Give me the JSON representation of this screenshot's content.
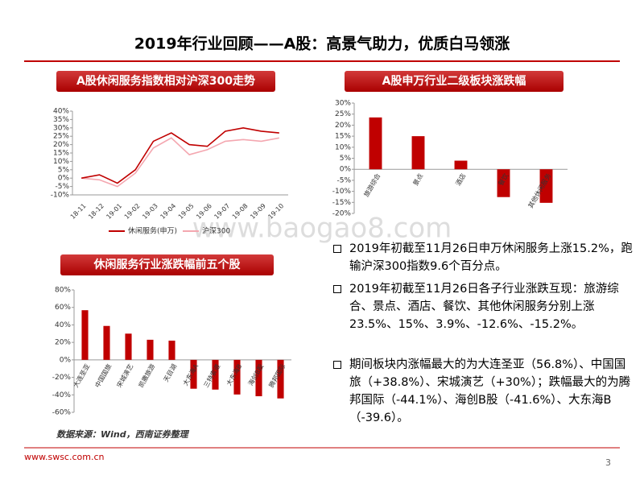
{
  "header": {
    "title": "2019年行业回顾——A股：高景气助力，优质白马领涨"
  },
  "chart_data": [
    {
      "type": "line",
      "title": "A股休闲服务指数相对沪深300走势",
      "categories": [
        "18-11",
        "18-12",
        "19-01",
        "19-02",
        "19-03",
        "19-04",
        "19-05",
        "19-06",
        "19-07",
        "19-08",
        "19-09",
        "19-10"
      ],
      "series": [
        {
          "name": "休闲服务(申万)",
          "color": "#c00000",
          "values": [
            0,
            2,
            -3,
            5,
            22,
            27,
            20,
            19,
            28,
            30,
            28,
            27
          ]
        },
        {
          "name": "沪深300",
          "color": "#f4a7b0",
          "values": [
            0,
            -1,
            -5,
            3,
            18,
            24,
            14,
            17,
            22,
            23,
            22,
            24
          ]
        }
      ],
      "ylim": [
        -10,
        40
      ],
      "yticks": [
        {
          "value": -10,
          "label": "-10%"
        },
        {
          "value": -5,
          "label": "-5%"
        },
        {
          "value": 0,
          "label": "0%"
        },
        {
          "value": 5,
          "label": "5%"
        },
        {
          "value": 10,
          "label": "10%"
        },
        {
          "value": 15,
          "label": "15%"
        },
        {
          "value": 20,
          "label": "20%"
        },
        {
          "value": 25,
          "label": "25%"
        },
        {
          "value": 30,
          "label": "30%"
        },
        {
          "value": 35,
          "label": "35%"
        },
        {
          "value": 40,
          "label": "40%"
        }
      ]
    },
    {
      "type": "bar",
      "title": "A股申万行业二级板块涨跌幅",
      "color": "#c00000",
      "categories": [
        "旅游综合",
        "景点",
        "酒店",
        "餐饮",
        "其他休闲服务"
      ],
      "values": [
        23.5,
        15,
        3.9,
        -12.6,
        -15.2
      ],
      "ylim": [
        -20,
        30
      ],
      "yticks": [
        {
          "value": -20,
          "label": "-20%"
        },
        {
          "value": -15,
          "label": "-15%"
        },
        {
          "value": -10,
          "label": "-10%"
        },
        {
          "value": -5,
          "label": "-5%"
        },
        {
          "value": 0,
          "label": "0%"
        },
        {
          "value": 5,
          "label": "5%"
        },
        {
          "value": 10,
          "label": "10%"
        },
        {
          "value": 15,
          "label": "15%"
        },
        {
          "value": 20,
          "label": "20%"
        },
        {
          "value": 25,
          "label": "25%"
        },
        {
          "value": 30,
          "label": "30%"
        }
      ]
    },
    {
      "type": "bar",
      "title": "休闲服务行业涨跌幅前五个股",
      "color": "#c00000",
      "categories": [
        "大连圣亚",
        "中国国旅",
        "宋城演艺",
        "凯撒旅游",
        "天目湖",
        "大东海A",
        "三特索道",
        "大东海B",
        "海创B股",
        "腾邦国际"
      ],
      "values": [
        56.8,
        38.8,
        30,
        23,
        22,
        -33,
        -34,
        -39.6,
        -41.6,
        -44.1
      ],
      "ylim": [
        -60,
        80
      ],
      "yticks": [
        {
          "value": -60,
          "label": "-60%"
        },
        {
          "value": -40,
          "label": "-40%"
        },
        {
          "value": -20,
          "label": "-20%"
        },
        {
          "value": 0,
          "label": "0%"
        },
        {
          "value": 20,
          "label": "20%"
        },
        {
          "value": 40,
          "label": "40%"
        },
        {
          "value": 60,
          "label": "60%"
        },
        {
          "value": 80,
          "label": "80%"
        }
      ]
    }
  ],
  "bullets": [
    "2019年初截至11月26日申万休闲服务上涨15.2%，跑输沪深300指数9.6个百分点。",
    "2019年初截至11月26日各子行业涨跌互现：旅游综合、景点、酒店、餐饮、其他休闲服务分别上涨23.5%、15%、3.9%、-12.6%、-15.2%。",
    "期间板块内涨幅最大的为大连圣亚（56.8%）、中国国旅（+38.8%）、宋城演艺（+30%）；跌幅最大的为腾邦国际（-44.1%）、海创B股（-41.6%）、大东海B（-39.6）。"
  ],
  "source": "数据来源：Wind，西南证券整理",
  "watermark": "www.baogao8.com",
  "footer": {
    "url": "www.swsc.com.cn",
    "page": "3"
  }
}
